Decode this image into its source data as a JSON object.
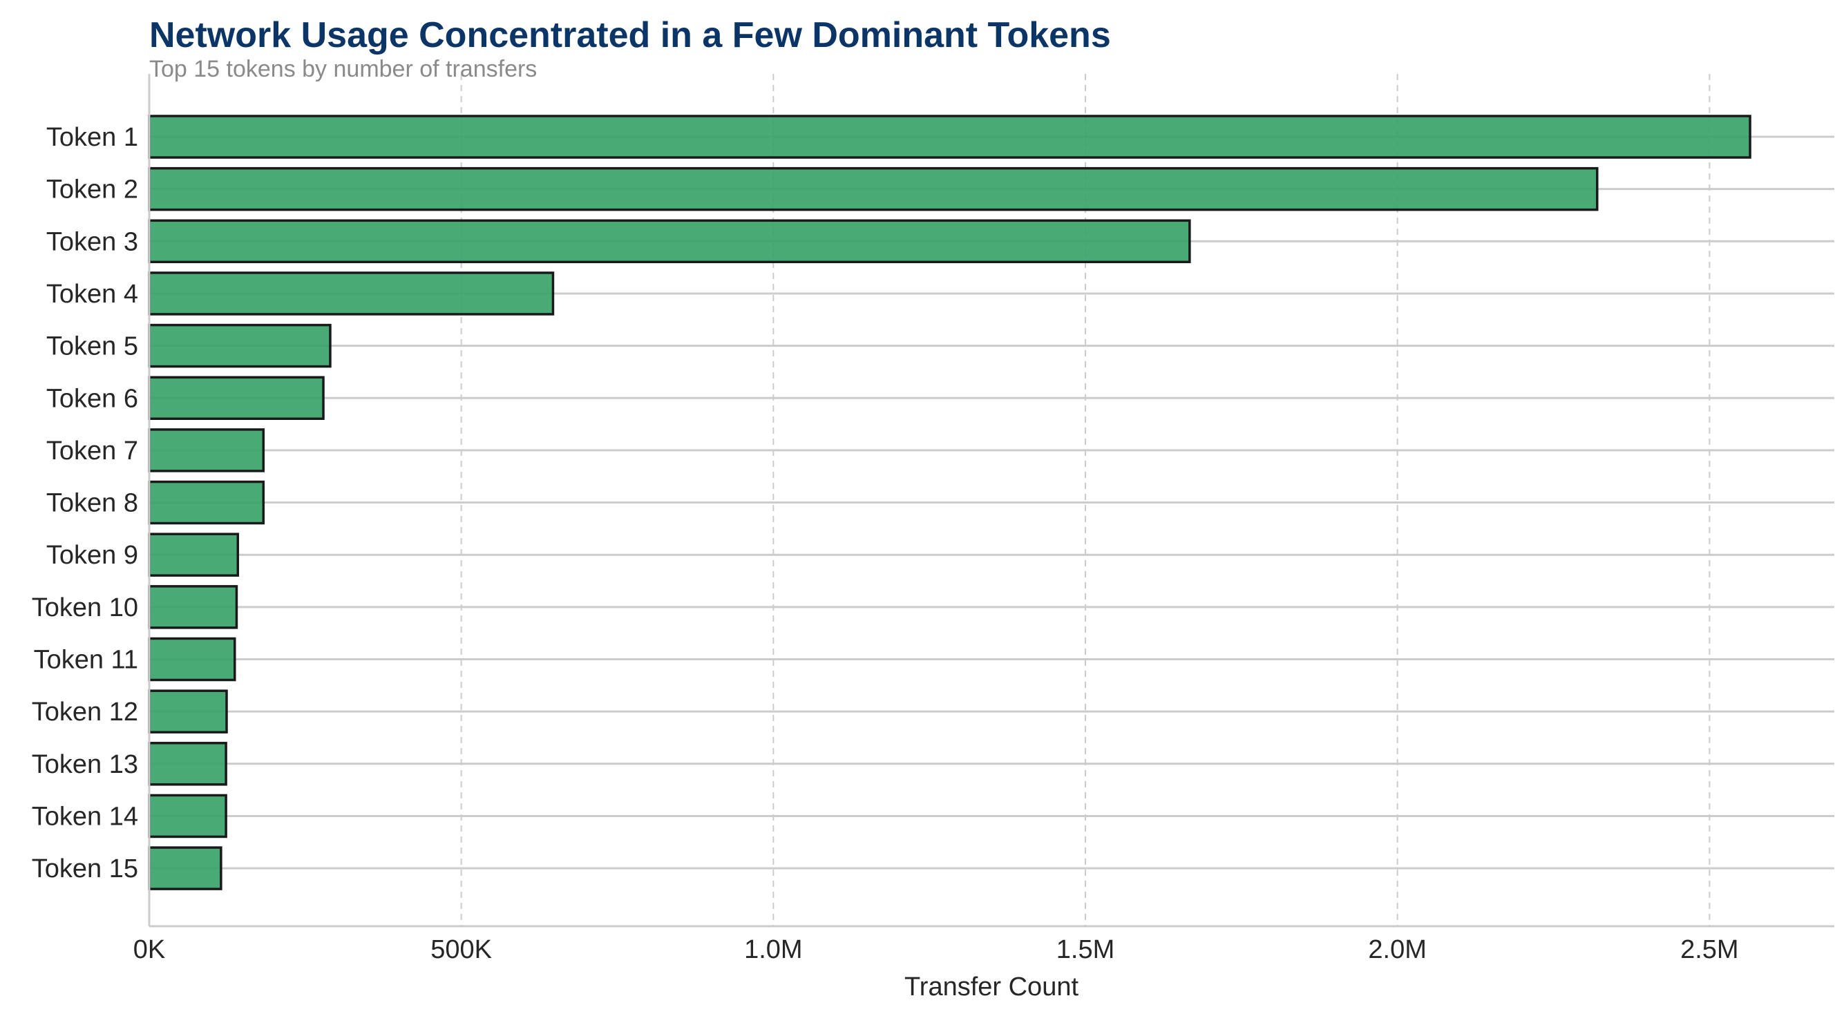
{
  "colors": {
    "bar_fill": "#3aa36a",
    "bar_edge": "#1a1a1a",
    "title": "#0b3566",
    "subtitle": "#8a8a8a",
    "grid": "#cccccc",
    "text": "#262626"
  },
  "chart_data": {
    "type": "bar",
    "orientation": "horizontal",
    "title": "Network Usage Concentrated in a Few Dominant Tokens",
    "subtitle": "Top 15 tokens by number of transfers",
    "xlabel": "Transfer Count",
    "ylabel": "",
    "xlim": [
      0,
      2700000
    ],
    "x_ticks": [
      0,
      500000,
      1000000,
      1500000,
      2000000,
      2500000
    ],
    "x_tick_labels": [
      "0K",
      "500K",
      "1.0M",
      "1.5M",
      "2.0M",
      "2.5M"
    ],
    "categories": [
      "Token 1",
      "Token 2",
      "Token 3",
      "Token 4",
      "Token 5",
      "Token 6",
      "Token 7",
      "Token 8",
      "Token 9",
      "Token 10",
      "Token 11",
      "Token 12",
      "Token 13",
      "Token 14",
      "Token 15"
    ],
    "values": [
      2565000,
      2320000,
      1667000,
      647000,
      290000,
      279000,
      183000,
      183000,
      142000,
      140000,
      137000,
      124000,
      123000,
      123000,
      115000
    ],
    "grid": {
      "x": true,
      "x_style": "dashed",
      "y": true,
      "y_style": "solid"
    },
    "legend": "none"
  }
}
